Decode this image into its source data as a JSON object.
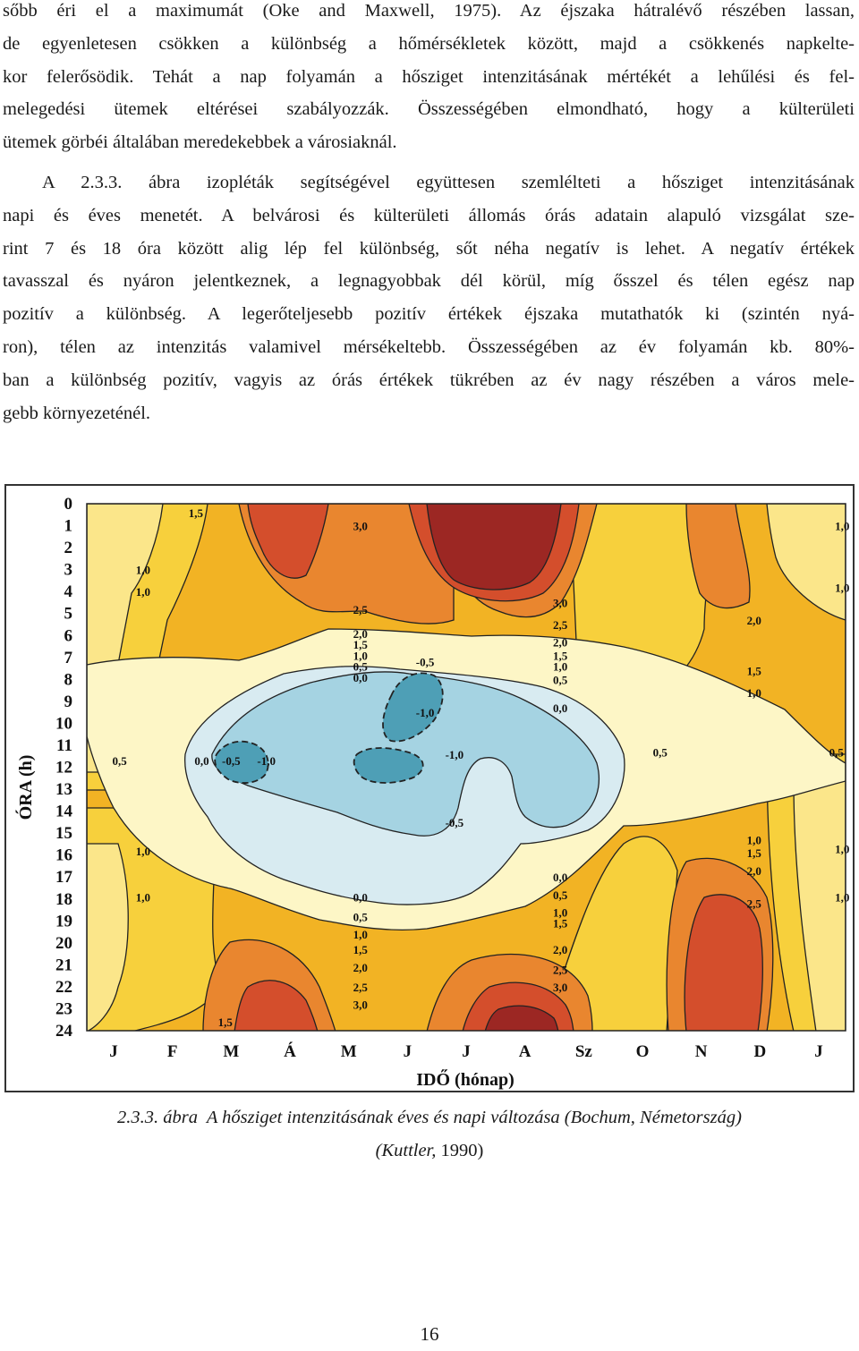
{
  "paragraph1_lines": [
    "sőbb éri el a maximumát (Oke and Maxwell, 1975). Az éjszaka hátralévő részében lassan,",
    "de egyenletesen csökken a különbség a hőmérsékletek között, majd a csökkenés napkelte-",
    "kor felerősödik. Tehát a nap folyamán a hősziget intenzitásának mértékét a lehűlési és fel-",
    "melegedési ütemek eltérései szabályozzák. Összességében elmondható, hogy a külterületi",
    "ütemek görbéi általában meredekebbek a városiaknál."
  ],
  "paragraph2": {
    "first_line_prefix": "A ",
    "figure_ref": "2.3.3. ábra",
    "first_line_rest": " izopléták segítségével együttesen szemlélteti a hősziget intenzitásának",
    "lines": [
      "napi és éves menetét. A belvárosi és külterületi állomás órás adatain alapuló vizsgálat sze-",
      "rint 7 és 18 óra között alig lép fel különbség, sőt néha negatív is lehet. A negatív értékek",
      "tavasszal és nyáron jelentkeznek, a legnagyobbak dél körül, míg ősszel és télen egész nap",
      "pozitív a különbség. A legerőteljesebb pozitív értékek éjszaka mutathatók ki (szintén nyá-",
      "ron), télen az intenzitás valamivel mérsékeltebb. Összességében az év folyamán kb. 80%-",
      "ban a különbség pozitív, vagyis az órás értékek tükrében az év nagy részében a város mele-",
      "gebb környezeténél."
    ]
  },
  "caption": {
    "number": "2.3.3. ábra",
    "title": "A hősziget intenzitásának éves és napi változása (Bochum, Németország)",
    "source_open": "(",
    "source_author": "Kuttler,",
    "source_year": " 1990)"
  },
  "page_number": "16",
  "chart_data": {
    "type": "contour",
    "xlabel": "IDŐ (hónap)",
    "ylabel": "ÓRA (h)",
    "x_ticks": [
      "J",
      "F",
      "M",
      "Á",
      "M",
      "J",
      "J",
      "A",
      "Sz",
      "O",
      "N",
      "D",
      "J"
    ],
    "y_ticks": [
      "0",
      "1",
      "2",
      "3",
      "4",
      "5",
      "6",
      "7",
      "8",
      "9",
      "10",
      "11",
      "12",
      "13",
      "14",
      "15",
      "16",
      "17",
      "18",
      "19",
      "20",
      "21",
      "22",
      "23",
      "24"
    ],
    "ylim": [
      0,
      24
    ],
    "levels": [
      -1.0,
      -0.5,
      0.0,
      0.5,
      1.0,
      1.5,
      2.0,
      2.5,
      3.0
    ],
    "level_colors": {
      "-1.0": "#4e9fb6",
      "-0.5": "#a5d3e2",
      "0.0": "#d8ebf1",
      "0.5": "#fdf6c6",
      "1.0": "#fbe68a",
      "1.5": "#f7d03c",
      "2.0": "#f2b324",
      "2.5": "#e9862f",
      "3.0": "#d44e2c",
      "max": "#9c2723"
    },
    "isoline_labels": [
      {
        "text": "1,5",
        "month": 1.4,
        "hour": 0.4
      },
      {
        "text": "3,0",
        "month": 4.2,
        "hour": 1.0
      },
      {
        "text": "1,0",
        "month": 12.4,
        "hour": 1.0
      },
      {
        "text": "1,0",
        "month": 0.5,
        "hour": 3.0
      },
      {
        "text": "1,0",
        "month": 0.5,
        "hour": 4.0
      },
      {
        "text": "1,0",
        "month": 12.4,
        "hour": 3.8
      },
      {
        "text": "2,5",
        "month": 4.2,
        "hour": 4.8
      },
      {
        "text": "3,0",
        "month": 7.6,
        "hour": 4.5
      },
      {
        "text": "2,0",
        "month": 10.9,
        "hour": 5.3
      },
      {
        "text": "2,5",
        "month": 7.6,
        "hour": 5.5
      },
      {
        "text": "2,0",
        "month": 4.2,
        "hour": 5.9
      },
      {
        "text": "2,0",
        "month": 7.6,
        "hour": 6.3
      },
      {
        "text": "1,5",
        "month": 4.2,
        "hour": 6.4
      },
      {
        "text": "1,5",
        "month": 7.6,
        "hour": 6.9
      },
      {
        "text": "1,0",
        "month": 4.2,
        "hour": 6.9
      },
      {
        "text": "-0,5",
        "month": 5.3,
        "hour": 7.2
      },
      {
        "text": "1,0",
        "month": 7.6,
        "hour": 7.4
      },
      {
        "text": "0,5",
        "month": 4.2,
        "hour": 7.4
      },
      {
        "text": "1,5",
        "month": 10.9,
        "hour": 7.6
      },
      {
        "text": "0,0",
        "month": 4.2,
        "hour": 7.9
      },
      {
        "text": "0,5",
        "month": 7.6,
        "hour": 8.0
      },
      {
        "text": "1,0",
        "month": 10.9,
        "hour": 8.6
      },
      {
        "text": "0,0",
        "month": 7.6,
        "hour": 9.3
      },
      {
        "text": "-1,0",
        "month": 5.3,
        "hour": 9.5
      },
      {
        "text": "0,5",
        "month": 9.3,
        "hour": 11.3
      },
      {
        "text": "0,5",
        "month": 12.3,
        "hour": 11.3
      },
      {
        "text": "0,5",
        "month": 0.1,
        "hour": 11.7
      },
      {
        "text": "0,0",
        "month": 1.5,
        "hour": 11.7
      },
      {
        "text": "-0,5",
        "month": 2.0,
        "hour": 11.7
      },
      {
        "text": "-1,0",
        "month": 2.6,
        "hour": 11.7
      },
      {
        "text": "-1,0",
        "month": 5.8,
        "hour": 11.4
      },
      {
        "text": "-0,5",
        "month": 5.8,
        "hour": 14.5
      },
      {
        "text": "1,0",
        "month": 10.9,
        "hour": 15.3
      },
      {
        "text": "1,0",
        "month": 0.5,
        "hour": 15.8
      },
      {
        "text": "1,5",
        "month": 10.9,
        "hour": 15.9
      },
      {
        "text": "1,0",
        "month": 12.4,
        "hour": 15.7
      },
      {
        "text": "2,0",
        "month": 10.9,
        "hour": 16.7
      },
      {
        "text": "0,0",
        "month": 7.6,
        "hour": 17.0
      },
      {
        "text": "0,5",
        "month": 7.6,
        "hour": 17.8
      },
      {
        "text": "1,0",
        "month": 0.5,
        "hour": 17.9
      },
      {
        "text": "0,0",
        "month": 4.2,
        "hour": 17.9
      },
      {
        "text": "1,0",
        "month": 12.4,
        "hour": 17.9
      },
      {
        "text": "2,5",
        "month": 10.9,
        "hour": 18.2
      },
      {
        "text": "1,0",
        "month": 7.6,
        "hour": 18.6
      },
      {
        "text": "0,5",
        "month": 4.2,
        "hour": 18.8
      },
      {
        "text": "1,5",
        "month": 7.6,
        "hour": 19.1
      },
      {
        "text": "1,0",
        "month": 4.2,
        "hour": 19.6
      },
      {
        "text": "1,5",
        "month": 4.2,
        "hour": 20.3
      },
      {
        "text": "2,0",
        "month": 7.6,
        "hour": 20.3
      },
      {
        "text": "2,0",
        "month": 4.2,
        "hour": 21.1
      },
      {
        "text": "2,5",
        "month": 7.6,
        "hour": 21.2
      },
      {
        "text": "3,0",
        "month": 7.6,
        "hour": 22.0
      },
      {
        "text": "2,5",
        "month": 4.2,
        "hour": 22.0
      },
      {
        "text": "3,0",
        "month": 4.2,
        "hour": 22.8
      },
      {
        "text": "1,5",
        "month": 1.9,
        "hour": 23.6
      }
    ]
  }
}
